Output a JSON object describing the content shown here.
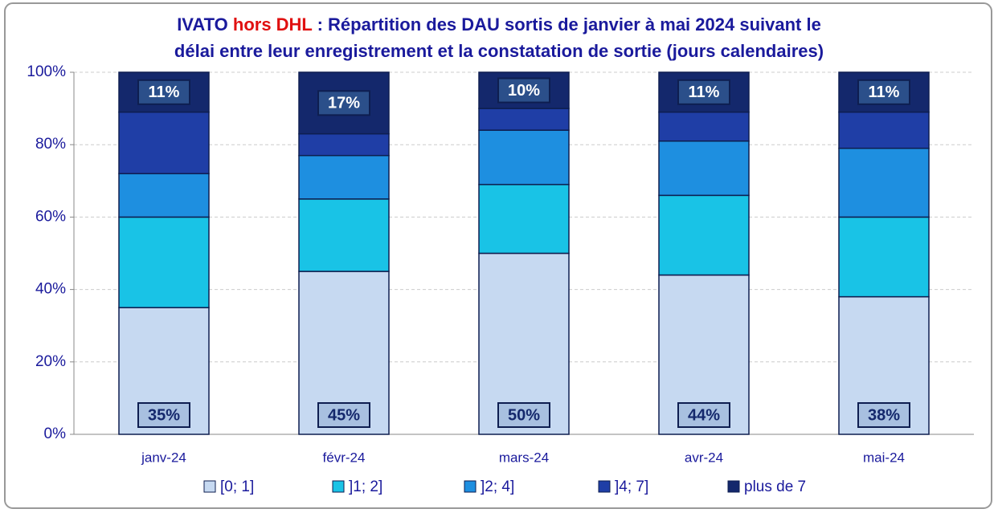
{
  "chart_data": {
    "type": "stacked_bar",
    "title_lines": [
      [
        {
          "text": "IVATO ",
          "color": "#1a1a9c"
        },
        {
          "text": "hors DHL",
          "color": "#e01010"
        },
        {
          "text": " : Répartition des DAU sortis de janvier à mai 2024 suivant le",
          "color": "#1a1a9c"
        }
      ],
      [
        {
          "text": "délai entre leur enregistrement et la constatation de sortie (jours calendaires)",
          "color": "#1a1a9c"
        }
      ]
    ],
    "categories": [
      "janv-24",
      "févr-24",
      "mars-24",
      "avr-24",
      "mai-24"
    ],
    "series": [
      {
        "name": "[0; 1]",
        "color": "#c6d9f1",
        "values": [
          35,
          45,
          50,
          44,
          38
        ],
        "value_labels": [
          "35%",
          "45%",
          "50%",
          "44%",
          "38%"
        ]
      },
      {
        "name": "]1; 2]",
        "color": "#19c3e6",
        "values": [
          25,
          20,
          19,
          22,
          22
        ]
      },
      {
        "name": "]2; 4]",
        "color": "#1e8fe0",
        "values": [
          12,
          12,
          15,
          15,
          19
        ]
      },
      {
        "name": "]4; 7]",
        "color": "#1f3ea6",
        "values": [
          17,
          6,
          6,
          8,
          10
        ]
      },
      {
        "name": "plus de 7",
        "color": "#14286c",
        "values": [
          11,
          17,
          10,
          11,
          11
        ],
        "value_labels": [
          "11%",
          "17%",
          "10%",
          "11%",
          "11%"
        ]
      }
    ],
    "ylim": [
      0,
      100
    ],
    "yticks": [
      {
        "value": 0,
        "label": "0%"
      },
      {
        "value": 20,
        "label": "20%"
      },
      {
        "value": 40,
        "label": "40%"
      },
      {
        "value": 60,
        "label": "60%"
      },
      {
        "value": 80,
        "label": "80%"
      },
      {
        "value": 100,
        "label": "100%"
      }
    ],
    "grid": true,
    "legend": "bottom"
  }
}
